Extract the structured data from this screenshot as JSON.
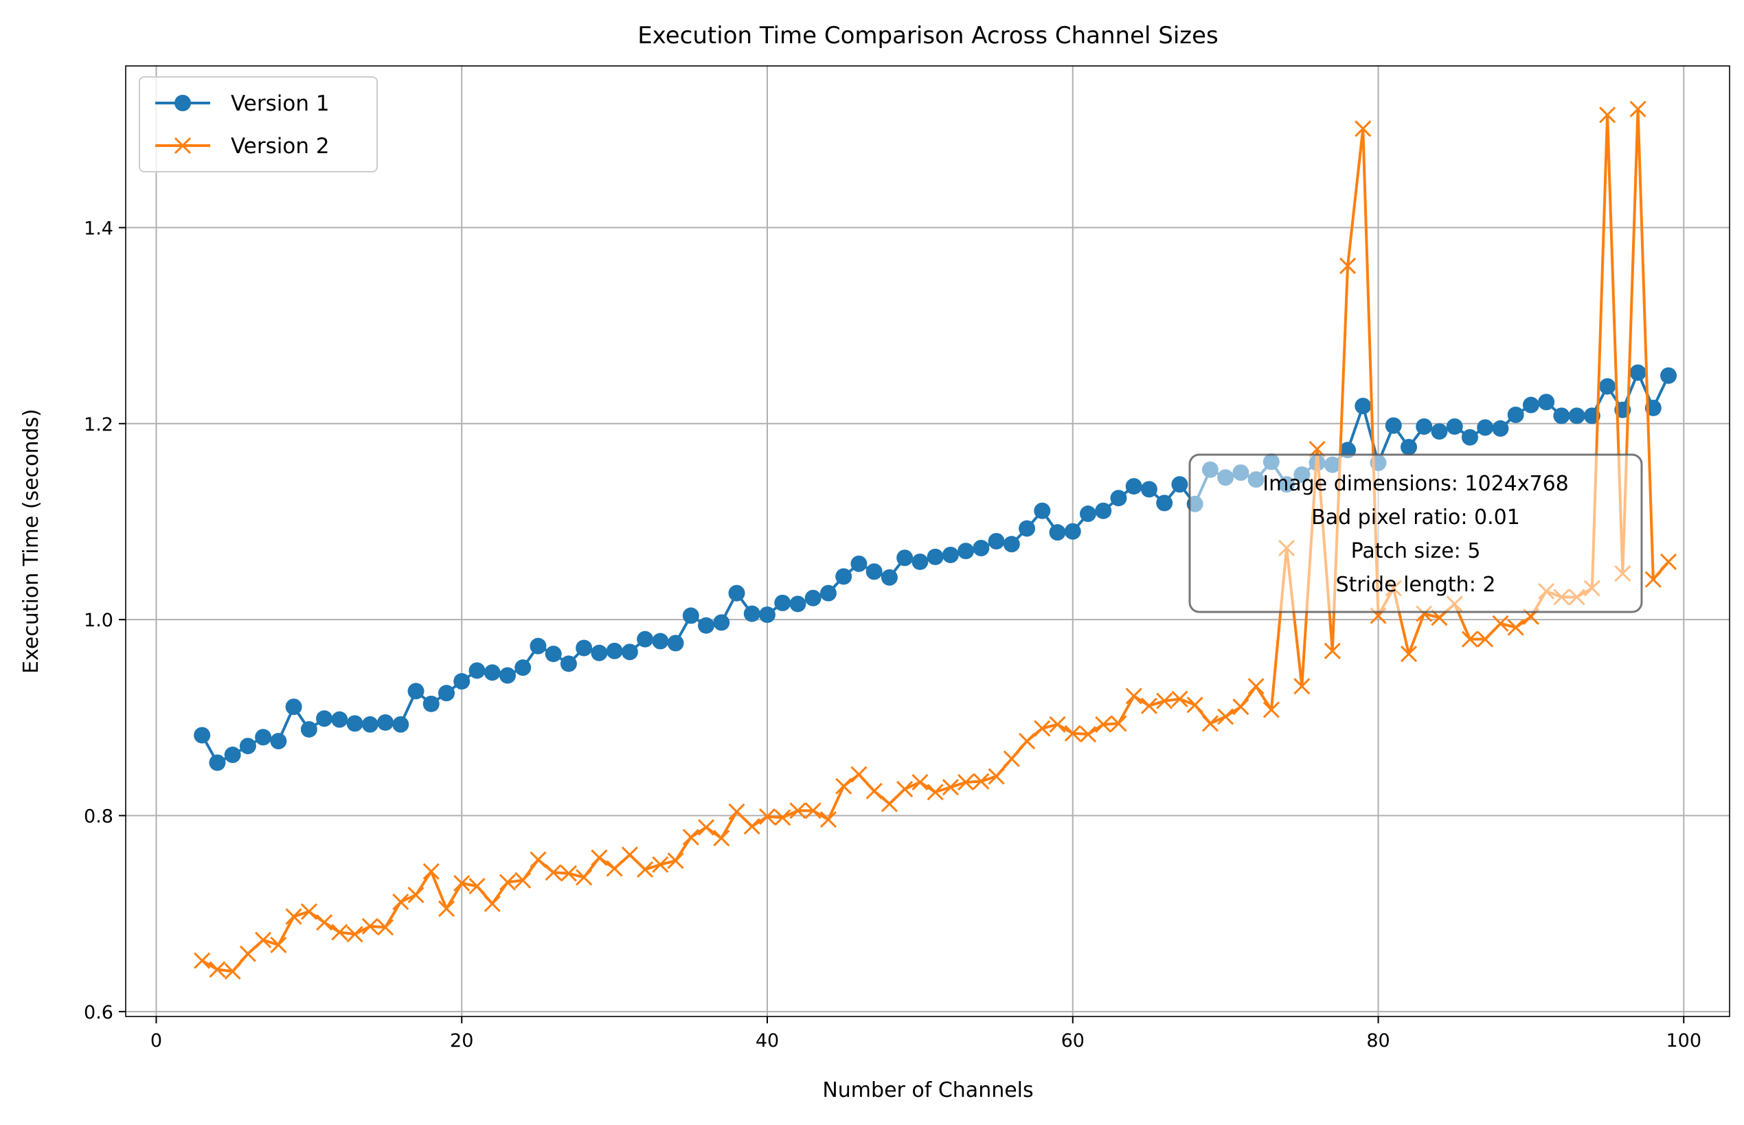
{
  "chart_data": {
    "type": "line",
    "title": "Execution Time Comparison Across Channel Sizes",
    "xlabel": "Number of Channels",
    "ylabel": "Execution Time (seconds)",
    "xlim": [
      -2,
      103
    ],
    "ylim": [
      0.595,
      1.565
    ],
    "x_ticks": [
      0,
      20,
      40,
      60,
      80,
      100
    ],
    "y_ticks": [
      0.6,
      0.8,
      1.0,
      1.2,
      1.4
    ],
    "x_tick_labels": [
      "0",
      "20",
      "40",
      "60",
      "80",
      "100"
    ],
    "y_tick_labels": [
      "0.6",
      "0.8",
      "1.0",
      "1.2",
      "1.4"
    ],
    "grid": true,
    "legend_position": "top-left",
    "x": [
      3,
      4,
      5,
      6,
      7,
      8,
      9,
      10,
      11,
      12,
      13,
      14,
      15,
      16,
      17,
      18,
      19,
      20,
      21,
      22,
      23,
      24,
      25,
      26,
      27,
      28,
      29,
      30,
      31,
      32,
      33,
      34,
      35,
      36,
      37,
      38,
      39,
      40,
      41,
      42,
      43,
      44,
      45,
      46,
      47,
      48,
      49,
      50,
      51,
      52,
      53,
      54,
      55,
      56,
      57,
      58,
      59,
      60,
      61,
      62,
      63,
      64,
      65,
      66,
      67,
      68,
      69,
      70,
      71,
      72,
      73,
      74,
      75,
      76,
      77,
      78,
      79,
      80,
      81,
      82,
      83,
      84,
      85,
      86,
      87,
      88,
      89,
      90,
      91,
      92,
      93,
      94,
      95,
      96,
      97,
      98,
      99
    ],
    "series": [
      {
        "name": "Version 1",
        "color": "#1f77b4",
        "marker": "circle",
        "values": [
          0.882,
          0.854,
          0.862,
          0.871,
          0.88,
          0.876,
          0.911,
          0.888,
          0.899,
          0.898,
          0.894,
          0.893,
          0.895,
          0.893,
          0.927,
          0.914,
          0.925,
          0.937,
          0.948,
          0.946,
          0.943,
          0.951,
          0.973,
          0.965,
          0.955,
          0.971,
          0.966,
          0.968,
          0.967,
          0.98,
          0.978,
          0.976,
          1.004,
          0.994,
          0.997,
          1.027,
          1.006,
          1.005,
          1.017,
          1.016,
          1.022,
          1.027,
          1.044,
          1.057,
          1.049,
          1.043,
          1.063,
          1.059,
          1.064,
          1.066,
          1.07,
          1.073,
          1.08,
          1.077,
          1.093,
          1.111,
          1.089,
          1.09,
          1.108,
          1.111,
          1.124,
          1.136,
          1.133,
          1.119,
          1.138,
          1.118,
          1.153,
          1.145,
          1.15,
          1.143,
          1.161,
          1.138,
          1.148,
          1.16,
          1.158,
          1.173,
          1.218,
          1.16,
          1.198,
          1.176,
          1.197,
          1.192,
          1.197,
          1.186,
          1.196,
          1.195,
          1.209,
          1.219,
          1.222,
          1.208,
          1.208,
          1.208,
          1.238,
          1.214,
          1.252,
          1.216,
          1.249
        ]
      },
      {
        "name": "Version 2",
        "color": "#ff7f0e",
        "marker": "x",
        "values": [
          0.652,
          0.643,
          0.641,
          0.659,
          0.673,
          0.668,
          0.697,
          0.702,
          0.691,
          0.681,
          0.679,
          0.687,
          0.686,
          0.712,
          0.719,
          0.743,
          0.705,
          0.731,
          0.728,
          0.71,
          0.732,
          0.734,
          0.755,
          0.742,
          0.741,
          0.737,
          0.757,
          0.746,
          0.76,
          0.745,
          0.75,
          0.754,
          0.778,
          0.788,
          0.777,
          0.804,
          0.789,
          0.799,
          0.798,
          0.805,
          0.805,
          0.796,
          0.83,
          0.842,
          0.825,
          0.812,
          0.827,
          0.834,
          0.824,
          0.829,
          0.834,
          0.835,
          0.84,
          0.858,
          0.876,
          0.889,
          0.893,
          0.884,
          0.883,
          0.893,
          0.894,
          0.922,
          0.912,
          0.917,
          0.919,
          0.913,
          0.894,
          0.901,
          0.911,
          0.932,
          0.908,
          1.073,
          0.932,
          1.174,
          0.968,
          1.361,
          1.501,
          1.004,
          1.032,
          0.965,
          1.006,
          1.002,
          1.016,
          0.98,
          0.98,
          0.996,
          0.992,
          1.003,
          1.029,
          1.023,
          1.023,
          1.032,
          1.515,
          1.047,
          1.521,
          1.041,
          1.059
        ]
      }
    ],
    "annotation": [
      "Image dimensions: 1024x768",
      "Bad pixel ratio: 0.01",
      "Patch size: 5",
      "Stride length: 2"
    ]
  }
}
